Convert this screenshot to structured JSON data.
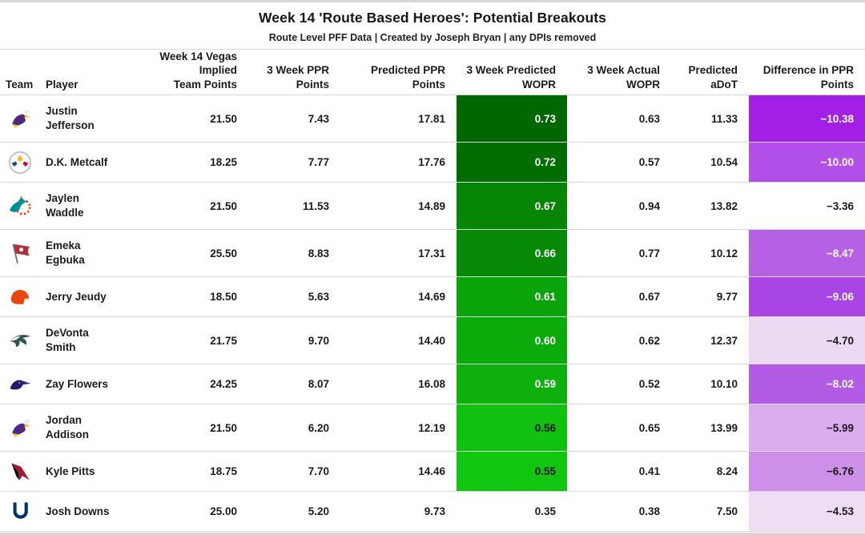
{
  "header": {
    "title": "Week 14 'Route Based Heroes': Potential Breakouts",
    "subtitle": "Route Level PFF Data | Created by Joseph Bryan | any DPIs removed"
  },
  "chart_data": {
    "type": "table",
    "title": "Week 14 'Route Based Heroes': Potential Breakouts",
    "subtitle": "Route Level PFF Data | Created by Joseph Bryan | any DPIs removed",
    "columns": [
      {
        "label": "Team",
        "align": "left"
      },
      {
        "label": "Player",
        "align": "left"
      },
      {
        "label": "Week 14 Vegas Implied\nTeam Points",
        "align": "right"
      },
      {
        "label": "3 Week PPR\nPoints",
        "align": "right"
      },
      {
        "label": "Predicted PPR\nPoints",
        "align": "right"
      },
      {
        "label": "3 Week Predicted\nWOPR",
        "align": "right"
      },
      {
        "label": "3 Week Actual\nWOPR",
        "align": "right"
      },
      {
        "label": "Predicted\naDoT",
        "align": "right"
      },
      {
        "label": "Difference in PPR\nPoints",
        "align": "right"
      }
    ],
    "color_scales": {
      "wopr_predicted": {
        "high": "#006400",
        "low": "#11C611",
        "none": "#FFFFFF"
      },
      "difference": {
        "high": "#A21FE6",
        "low": "#F0E0F4",
        "none": "#FFFFFF"
      }
    },
    "rows": [
      {
        "team": "vikings",
        "player": "Justin\nJefferson",
        "vegas": "21.50",
        "ppr3": "7.43",
        "pred_ppr": "17.81",
        "wopr_pred": "0.73",
        "wopr_bg": "#016702",
        "wopr_text": "#ffffff",
        "wopr_act": "0.63",
        "adot": "11.33",
        "diff": "−10.38",
        "diff_bg": "#A21FE6",
        "diff_text": "#ffffff"
      },
      {
        "team": "steelers",
        "player": "D.K. Metcalf",
        "vegas": "18.25",
        "ppr3": "7.77",
        "pred_ppr": "17.76",
        "wopr_pred": "0.72",
        "wopr_bg": "#026E02",
        "wopr_text": "#ffffff",
        "wopr_act": "0.57",
        "adot": "10.54",
        "diff": "−10.00",
        "diff_bg": "#B14FE8",
        "diff_text": "#ffffff"
      },
      {
        "team": "dolphins",
        "player": "Jaylen\nWaddle",
        "vegas": "21.50",
        "ppr3": "11.53",
        "pred_ppr": "14.89",
        "wopr_pred": "0.67",
        "wopr_bg": "#068506",
        "wopr_text": "#ffffff",
        "wopr_act": "0.94",
        "adot": "13.82",
        "diff": "−3.36",
        "diff_bg": "#FFFFFF",
        "diff_text": "#1b1b1b"
      },
      {
        "team": "buccaneers",
        "player": "Emeka\nEgbuka",
        "vegas": "25.50",
        "ppr3": "8.83",
        "pred_ppr": "17.31",
        "wopr_pred": "0.66",
        "wopr_bg": "#078A07",
        "wopr_text": "#ffffff",
        "wopr_act": "0.77",
        "adot": "10.12",
        "diff": "−8.47",
        "diff_bg": "#B660E6",
        "diff_text": "#ffffff"
      },
      {
        "team": "browns",
        "player": "Jerry Jeudy",
        "vegas": "18.50",
        "ppr3": "5.63",
        "pred_ppr": "14.69",
        "wopr_pred": "0.61",
        "wopr_bg": "#0BA50B",
        "wopr_text": "#ffffff",
        "wopr_act": "0.67",
        "adot": "9.77",
        "diff": "−9.06",
        "diff_bg": "#AA45E5",
        "diff_text": "#ffffff"
      },
      {
        "team": "eagles",
        "player": "DeVonta\nSmith",
        "vegas": "21.75",
        "ppr3": "9.70",
        "pred_ppr": "14.40",
        "wopr_pred": "0.60",
        "wopr_bg": "#0CAB0C",
        "wopr_text": "#ffffff",
        "wopr_act": "0.62",
        "adot": "12.37",
        "diff": "−4.70",
        "diff_bg": "#ECD9F3",
        "diff_text": "#1b1b1b"
      },
      {
        "team": "ravens",
        "player": "Zay Flowers",
        "vegas": "24.25",
        "ppr3": "8.07",
        "pred_ppr": "16.08",
        "wopr_pred": "0.59",
        "wopr_bg": "#0DB00D",
        "wopr_text": "#ffffff",
        "wopr_act": "0.52",
        "adot": "10.10",
        "diff": "−8.02",
        "diff_bg": "#B25CE6",
        "diff_text": "#ffffff"
      },
      {
        "team": "vikings",
        "player": "Jordan\nAddison",
        "vegas": "21.50",
        "ppr3": "6.20",
        "pred_ppr": "12.19",
        "wopr_pred": "0.56",
        "wopr_bg": "#10C110",
        "wopr_text": "#111111",
        "wopr_act": "0.65",
        "adot": "13.99",
        "diff": "−5.99",
        "diff_bg": "#DBACEE",
        "diff_text": "#1b1b1b"
      },
      {
        "team": "falcons",
        "player": "Kyle Pitts",
        "vegas": "18.75",
        "ppr3": "7.70",
        "pred_ppr": "14.46",
        "wopr_pred": "0.55",
        "wopr_bg": "#11C611",
        "wopr_text": "#111111",
        "wopr_act": "0.41",
        "adot": "8.24",
        "diff": "−6.76",
        "diff_bg": "#CC90E8",
        "diff_text": "#1b1b1b"
      },
      {
        "team": "colts",
        "player": "Josh Downs",
        "vegas": "25.00",
        "ppr3": "5.20",
        "pred_ppr": "9.73",
        "wopr_pred": "0.35",
        "wopr_bg": "#FFFFFF",
        "wopr_text": "#1b1b1b",
        "wopr_act": "0.38",
        "adot": "7.50",
        "diff": "−4.53",
        "diff_bg": "#EFDEF3",
        "diff_text": "#1b1b1b"
      }
    ]
  }
}
